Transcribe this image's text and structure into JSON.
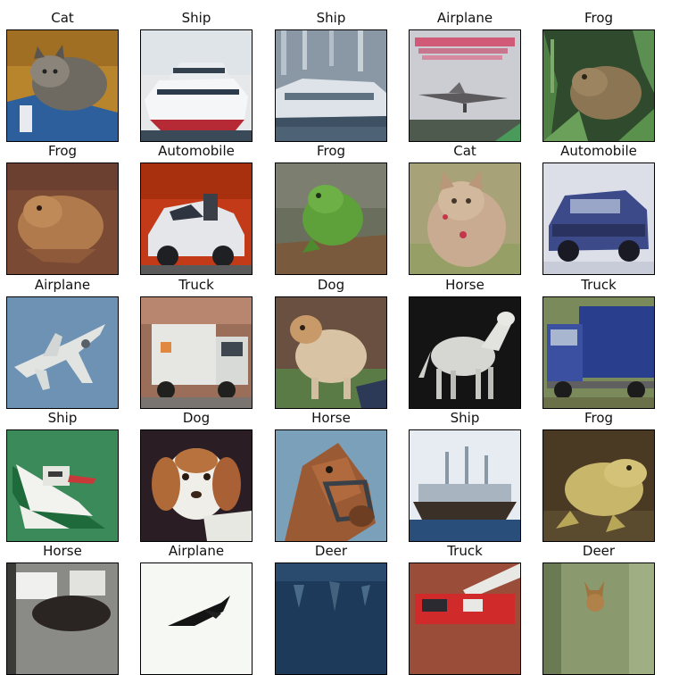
{
  "grid": {
    "rows": [
      {
        "cells": [
          {
            "label": "Cat",
            "scene": "cat-orange"
          },
          {
            "label": "Ship",
            "scene": "ship-white"
          },
          {
            "label": "Ship",
            "scene": "ship-harbor"
          },
          {
            "label": "Airplane",
            "scene": "airplane-book"
          },
          {
            "label": "Frog",
            "scene": "frog-grass"
          }
        ]
      },
      {
        "cells": [
          {
            "label": "Frog",
            "scene": "frog-brown"
          },
          {
            "label": "Automobile",
            "scene": "car-white-red"
          },
          {
            "label": "Frog",
            "scene": "frog-green"
          },
          {
            "label": "Cat",
            "scene": "cat-tabby"
          },
          {
            "label": "Automobile",
            "scene": "car-blue"
          }
        ]
      },
      {
        "cells": [
          {
            "label": "Airplane",
            "scene": "jet-sky"
          },
          {
            "label": "Truck",
            "scene": "truck-white"
          },
          {
            "label": "Dog",
            "scene": "dog-field"
          },
          {
            "label": "Horse",
            "scene": "horse-white"
          },
          {
            "label": "Truck",
            "scene": "truck-blue"
          }
        ]
      },
      {
        "cells": [
          {
            "label": "Ship",
            "scene": "ship-green"
          },
          {
            "label": "Dog",
            "scene": "dog-puppy"
          },
          {
            "label": "Horse",
            "scene": "horse-bridle"
          },
          {
            "label": "Ship",
            "scene": "ship-boat"
          },
          {
            "label": "Frog",
            "scene": "frog-yellow"
          }
        ]
      },
      {
        "cells": [
          {
            "label": "Horse",
            "scene": "horse-stable"
          },
          {
            "label": "Airplane",
            "scene": "airplane-white"
          },
          {
            "label": "Deer",
            "scene": "deer-blue"
          },
          {
            "label": "Truck",
            "scene": "truck-red"
          },
          {
            "label": "Deer",
            "scene": "deer-green"
          }
        ]
      }
    ]
  }
}
